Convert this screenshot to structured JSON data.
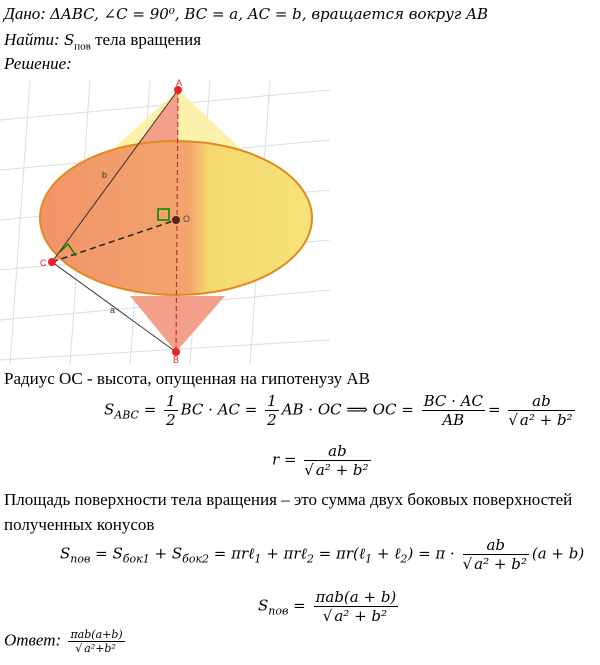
{
  "given": {
    "label": "Дано:",
    "text": "ΔABC, ∠C = 90⁰,  BC = a,  AC = b, вращается вокруг AB"
  },
  "find": {
    "label": "Найти:",
    "symbol": "S",
    "sub": "пов",
    "text": "тела вращения"
  },
  "solution_label": "Решение:",
  "figure": {
    "A": "A",
    "B": "B",
    "C": "C",
    "O": "O",
    "side_a": "a",
    "side_b": "b"
  },
  "radius_text": "Радиус OC - высота, опущенная на гипотенузу AB",
  "formula1": [
    "S",
    "ABC",
    "=",
    "1",
    "2",
    "BC · AC =",
    "1",
    "2",
    "AB · OC ⟹ OC =",
    "BC · AC",
    "AB",
    "=",
    "ab",
    "a² + b²"
  ],
  "formula2": [
    "r =",
    "ab",
    "a² + b²"
  ],
  "area_text": "Площадь поверхности тела вращения – это сумма двух боковых поверхностей полученных конусов",
  "formula3": [
    "S",
    "пов",
    "= S",
    "бок1",
    "+ S",
    "бок2",
    "= πrℓ",
    "1",
    "+ πrℓ",
    "2",
    "= πr(ℓ",
    "1",
    "+ ℓ",
    "2",
    ") = π ·",
    "ab",
    "a² + b²",
    "(a + b)"
  ],
  "formula4": [
    "S",
    "пов",
    "=",
    "πab(a + b)",
    "a² + b²"
  ],
  "answer": {
    "label": "Ответ:",
    "numerator": "πab(a+b)",
    "denominator": "a²+b²"
  }
}
